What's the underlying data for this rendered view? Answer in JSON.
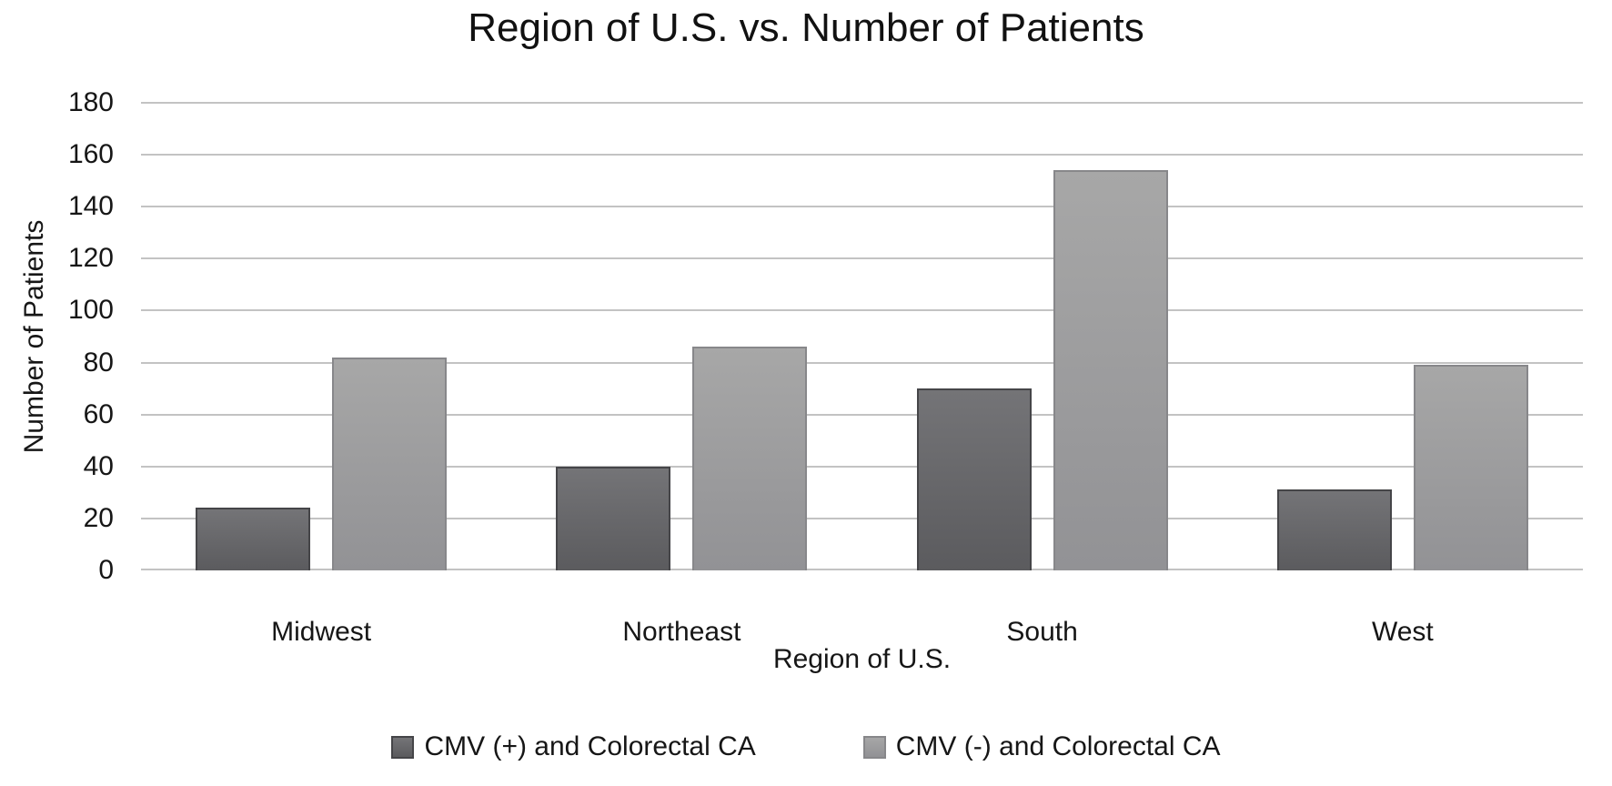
{
  "page": {
    "background": "#ffffff",
    "text_color": "#161616"
  },
  "chart_data": {
    "type": "bar",
    "title": "Region of U.S. vs. Number of Patients",
    "xlabel": "Region of U.S.",
    "ylabel": "Number of Patients",
    "categories": [
      "Midwest",
      "Northeast",
      "South",
      "West"
    ],
    "series": [
      {
        "name": "CMV (+) and Colorectal CA",
        "key": "cmv-positive",
        "values": [
          24,
          40,
          70,
          31
        ],
        "fill_top": "#747477",
        "fill_bottom": "#5b5b5e",
        "border": "#454548"
      },
      {
        "name": "CMV (-) and Colorectal CA",
        "key": "cmv-negative",
        "values": [
          82,
          86,
          154,
          79
        ],
        "fill_top": "#a7a7a7",
        "fill_bottom": "#929295",
        "border": "#87878a"
      }
    ],
    "ylim": [
      0,
      180
    ],
    "yticks": [
      0,
      20,
      40,
      60,
      80,
      100,
      120,
      140,
      160,
      180
    ],
    "grid": true,
    "gridline_color": "#c3c3c3",
    "legend_position": "bottom"
  }
}
